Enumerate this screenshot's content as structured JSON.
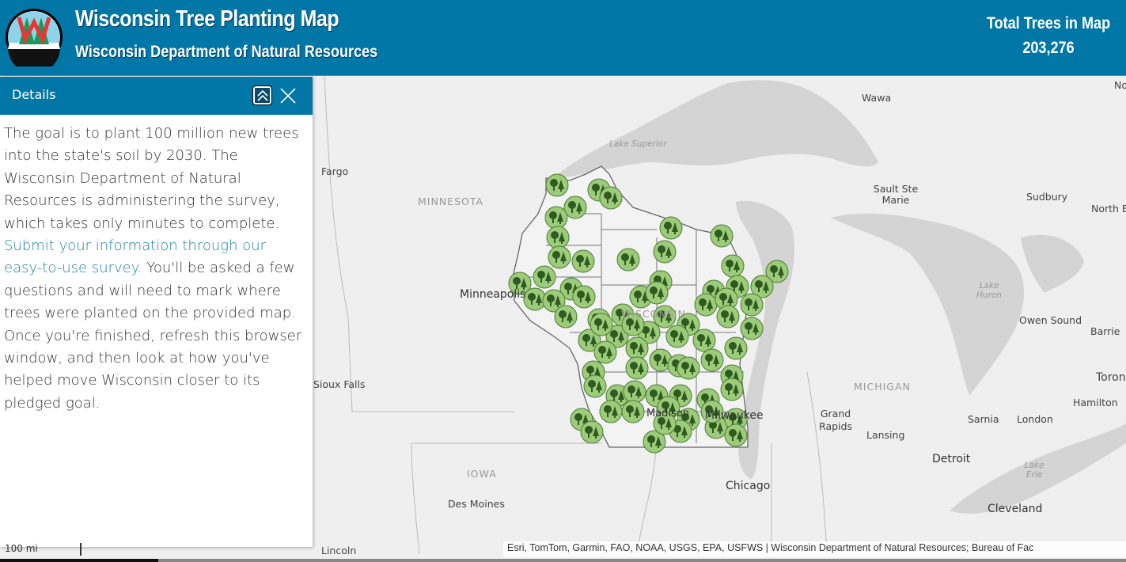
{
  "header": {
    "title": "Wisconsin Tree Planting Map",
    "subtitle": "Wisconsin Department of Natural Resources",
    "total_label": "Total Trees in Map",
    "total_value": "203,276",
    "color": "#0077a6"
  },
  "panel": {
    "title": "Details",
    "collapse_icon": "double-chevron-up-icon",
    "close_icon": "close-icon",
    "text_before": "The goal is to plant 100 million new trees into the state's soil by 2030. The Wisconsin Department of Natural Resources is administering the survey, which takes only minutes to complete. ",
    "link_text": "Submit your information through our easy-to-use survey.",
    "text_after": " You'll be asked a few questions and will need to mark where trees were planted on the provided map. Once you're finished, refresh this browser window, and then look at how you've helped move Wisconsin closer to its pledged goal."
  },
  "map": {
    "marker_icon": "tree-icon",
    "marker_color": "#9ccc7a",
    "labels": {
      "wawa": "Wawa",
      "lake_superior": "Lake Superior",
      "fargo": "Fargo",
      "minnesota": "MINNESOTA",
      "sault": "Sault Ste Marie",
      "sudbury": "Sudbury",
      "northbay": "North B",
      "no": "No",
      "minneapolis": "Minneapolis",
      "wisconsin": "WISCONSIN",
      "lake_huron": "Lake Huron",
      "owen": "Owen Sound",
      "barrie": "Barrie",
      "toronto": "Toron",
      "sioux": "Sioux Falls",
      "michigan": "MICHIGAN",
      "grand_rapids": "Grand Rapids",
      "lansing": "Lansing",
      "sarnia": "Sarnia",
      "london": "London",
      "hamilton": "Hamilton",
      "madison": "Madison",
      "milwaukee": "Milwaukee",
      "detroit": "Detroit",
      "lake_erie": "Lake Erie",
      "iowa": "IOWA",
      "des_moines": "Des Moines",
      "chicago": "Chicago",
      "cleveland": "Cleveland",
      "lincoln": "Lincoln"
    },
    "scale": "100 mi",
    "attribution": "Esri, TomTom, Garmin, FAO, NOAA, USGS, EPA, USFWS | Wisconsin Department of Natural Resources; Bureau of Fac"
  }
}
